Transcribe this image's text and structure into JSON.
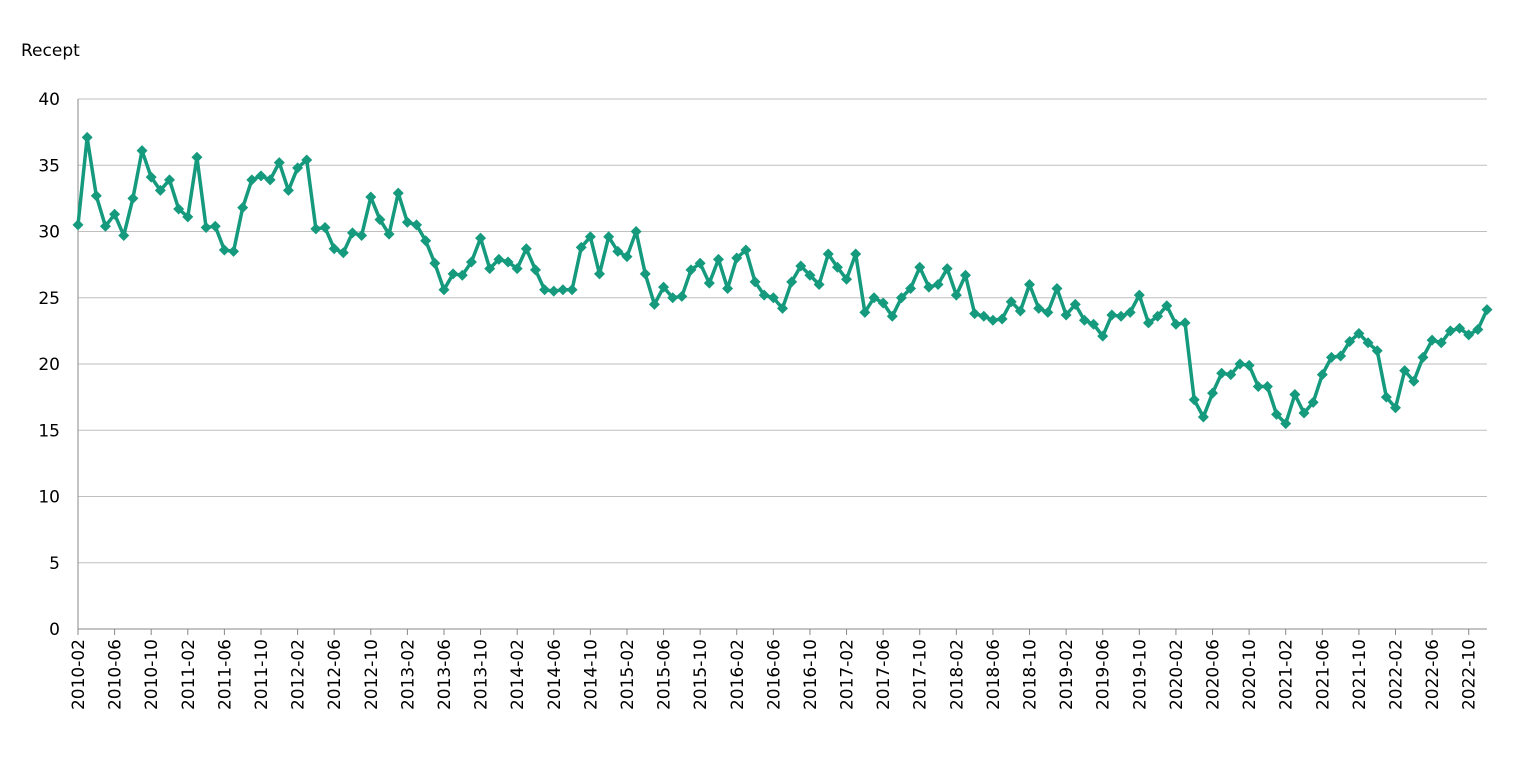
{
  "chart_data": {
    "type": "line",
    "y_label": "Recept",
    "categories": [
      "2010-02",
      null,
      null,
      null,
      "2010-06",
      null,
      null,
      null,
      "2010-10",
      null,
      null,
      null,
      "2011-02",
      null,
      null,
      null,
      "2011-06",
      null,
      null,
      null,
      "2011-10",
      null,
      null,
      null,
      "2012-02",
      null,
      null,
      null,
      "2012-06",
      null,
      null,
      null,
      "2012-10",
      null,
      null,
      null,
      "2013-02",
      null,
      null,
      null,
      "2013-06",
      null,
      null,
      null,
      "2013-10",
      null,
      null,
      null,
      "2014-02",
      null,
      null,
      null,
      "2014-06",
      null,
      null,
      null,
      "2014-10",
      null,
      null,
      null,
      "2015-02",
      null,
      null,
      null,
      "2015-06",
      null,
      null,
      null,
      "2015-10",
      null,
      null,
      null,
      "2016-02",
      null,
      null,
      null,
      "2016-06",
      null,
      null,
      null,
      "2016-10",
      null,
      null,
      null,
      "2017-02",
      null,
      null,
      null,
      "2017-06",
      null,
      null,
      null,
      "2017-10",
      null,
      null,
      null,
      "2018-02",
      null,
      null,
      null,
      "2018-06",
      null,
      null,
      null,
      "2018-10",
      null,
      null,
      null,
      "2019-02",
      null,
      null,
      null,
      "2019-06",
      null,
      null,
      null,
      "2019-10",
      null,
      null,
      null,
      "2020-02",
      null,
      null,
      null,
      "2020-06",
      null,
      null,
      null,
      "2020-10",
      null,
      null,
      null,
      "2021-02",
      null,
      null,
      null,
      "2021-06",
      null,
      null,
      null,
      "2021-10",
      null,
      null,
      null,
      "2022-02",
      null,
      null,
      null,
      "2022-06",
      null,
      null,
      null,
      "2022-10",
      null,
      null
    ],
    "series": [
      {
        "color": "#159a7d",
        "values": [
          30.5,
          37.1,
          32.7,
          30.4,
          31.3,
          29.7,
          32.5,
          36.1,
          34.1,
          33.1,
          33.9,
          31.7,
          31.1,
          35.6,
          30.3,
          30.4,
          28.6,
          28.5,
          31.8,
          33.9,
          34.2,
          33.9,
          35.2,
          33.1,
          34.8,
          35.4,
          30.2,
          30.3,
          28.7,
          28.4,
          29.9,
          29.7,
          32.6,
          30.9,
          29.8,
          32.9,
          30.7,
          30.5,
          29.3,
          27.6,
          25.6,
          26.8,
          26.7,
          27.7,
          29.5,
          27.2,
          27.9,
          27.7,
          27.2,
          28.7,
          27.1,
          25.6,
          25.5,
          25.6,
          25.6,
          28.8,
          29.6,
          26.8,
          29.6,
          28.5,
          28.1,
          30.0,
          26.8,
          24.5,
          25.8,
          25.0,
          25.1,
          27.1,
          27.6,
          26.1,
          27.9,
          25.7,
          28.0,
          28.6,
          26.2,
          25.2,
          25.0,
          24.2,
          26.2,
          27.4,
          26.7,
          26.0,
          28.3,
          27.3,
          26.4,
          28.3,
          23.9,
          25.0,
          24.6,
          23.6,
          25.0,
          25.7,
          27.3,
          25.8,
          26.0,
          27.2,
          25.2,
          26.7,
          23.8,
          23.6,
          23.3,
          23.4,
          24.7,
          24.0,
          26.0,
          24.2,
          23.9,
          25.7,
          23.7,
          24.5,
          23.3,
          23.0,
          22.1,
          23.7,
          23.6,
          23.9,
          25.2,
          23.1,
          23.6,
          24.4,
          23.0,
          23.1,
          17.3,
          16.0,
          17.8,
          19.3,
          19.2,
          20.0,
          19.9,
          18.3,
          18.3,
          16.2,
          15.5,
          17.7,
          16.3,
          17.1,
          19.2,
          20.5,
          20.6,
          21.7,
          22.3,
          21.6,
          21.0,
          17.5,
          16.7,
          19.5,
          18.7,
          20.5,
          21.8,
          21.6,
          22.5,
          22.7,
          22.2,
          22.6,
          24.1
        ]
      }
    ],
    "ylim": [
      0,
      40
    ],
    "yticks": [
      0,
      5,
      10,
      15,
      20,
      25,
      30,
      35,
      40
    ],
    "grid": true
  }
}
